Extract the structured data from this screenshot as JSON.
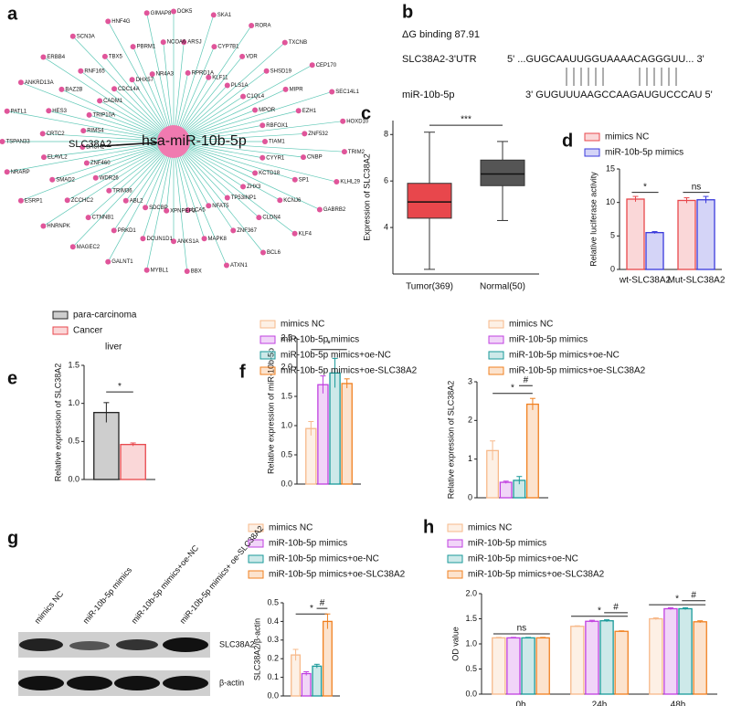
{
  "panels": [
    "a",
    "b",
    "c",
    "d",
    "e",
    "f",
    "g",
    "h"
  ],
  "network": {
    "center": "hsa-miR-10b-5p",
    "highlight": "SLC38A2",
    "nodes": [
      "DOK5",
      "ARSJ",
      "RPRD1A",
      "SKA1",
      "CYP7B1",
      "KLF11",
      "RORA",
      "VDR",
      "PLS1A",
      "TXCNB",
      "SHSD19",
      "C1QL4",
      "CEP170",
      "MIPR",
      "MPOR",
      "SEC14L1",
      "EZH1",
      "RBFOX1",
      "HOXD10",
      "ZNF532",
      "TIAM1",
      "TRIM2",
      "CNBP",
      "CYYR1",
      "KLHL29",
      "SP1",
      "KCTD18",
      "GABRB2",
      "KCNJ6",
      "ZHX3",
      "KLF4",
      "CLDN4",
      "TP53INP1",
      "BCL6",
      "ZNF367",
      "NFAT5",
      "ATXN1",
      "MAPK8",
      "LCA5",
      "BBX",
      "ANKS1A",
      "XPNPEP3",
      "MYBL1",
      "DCUN1D1",
      "SDCBP",
      "GALNT1",
      "PRKD1",
      "ABL2",
      "MAGEC2",
      "CTNNB1",
      "TRIM36",
      "HNRNPK",
      "ZCCHC2",
      "WDR26",
      "ESRP1",
      "SMAD2",
      "ZNF460",
      "NRARP",
      "ELAVL2",
      "BACH2",
      "TSPAN33",
      "CRTC2",
      "RIMS4",
      "PATL1",
      "HES3",
      "TRIP10A",
      "ANKRD13A",
      "BAZ2B",
      "CADM1",
      "ERBB4",
      "RNF165",
      "CDC14A",
      "SCN3A",
      "TBX5",
      "DHX57",
      "HNF4G",
      "PBRM1",
      "NR4A3",
      "GIMAP8",
      "NCOA6"
    ]
  },
  "sequence": {
    "title": "ΔG binding 87.91",
    "utr_name": "SLC38A2-3'UTR",
    "utr_seq": "5' ...GUGCAAUUGGUAAAACAGGGUU... 3'",
    "mir_name": "miR-10b-5p",
    "mir_seq": "3' GUGUUUAAGCCAAGAUGUCCCAU 5'"
  },
  "blot": {
    "lanes": [
      "mimics NC",
      "miR-10b-5p mimics",
      "miR-10b-5p mimics+oe-NC",
      "miR-10b-5p mimics+ oe-SLC38A2"
    ],
    "rows": [
      "SLC38A2",
      "β-actin"
    ]
  },
  "chart_data": [
    {
      "type": "box",
      "y_label": "Expression of SLC38A2",
      "categories": [
        "Tumor(369)",
        "Normal(50)"
      ],
      "colors": [
        "#e8474c",
        "#555555"
      ],
      "min": [
        2.2,
        4.3
      ],
      "q1": [
        4.4,
        5.8
      ],
      "median": [
        5.1,
        6.3
      ],
      "q3": [
        5.9,
        6.9
      ],
      "max": [
        8.1,
        7.7
      ],
      "ylim": [
        2,
        8.6
      ],
      "yticks": [
        4,
        6,
        8
      ],
      "annotations": [
        "***"
      ]
    },
    {
      "type": "bar",
      "y_label": "Relative luciferase activity",
      "categories": [
        "wt-SLC38A2",
        "Mut-SLC38A2"
      ],
      "series": [
        {
          "name": "mimics NC",
          "color": "#e8474c",
          "values": [
            10.5,
            10.3
          ],
          "errors": [
            0.4,
            0.4
          ]
        },
        {
          "name": "miR-10b-5p mimics",
          "color": "#3a3adc",
          "values": [
            5.5,
            10.4
          ],
          "errors": [
            0.15,
            0.5
          ]
        }
      ],
      "ylim": [
        0,
        15
      ],
      "yticks": [
        0,
        5,
        10,
        15
      ],
      "annotations": [
        "*",
        "ns"
      ]
    },
    {
      "type": "bar",
      "title": "liver",
      "y_label": "Relative expression of SLC38A2",
      "series": [
        {
          "name": "para-carcinoma",
          "color": "#222222",
          "values": [
            0.88
          ],
          "errors": [
            0.13
          ]
        },
        {
          "name": "Cancer",
          "color": "#e8474c",
          "values": [
            0.46
          ],
          "errors": [
            0.02
          ]
        }
      ],
      "ylim": [
        0,
        1.5
      ],
      "yticks": [
        {
          "value": 0,
          "label": "0.0"
        },
        {
          "value": 0.5,
          "label": "0.5"
        },
        {
          "value": 1,
          "label": "1.0"
        },
        {
          "value": 1.5,
          "label": "1.5"
        }
      ],
      "annotations": [
        "*"
      ]
    },
    {
      "type": "bar",
      "y_label": "Relative expression of miR-10b-5p",
      "series": [
        {
          "name": "mimics NC",
          "color": "#f7b98a",
          "values": [
            0.95
          ],
          "errors": [
            0.12
          ]
        },
        {
          "name": "miR-10b-5p mimics",
          "color": "#c040e0",
          "values": [
            1.7
          ],
          "errors": [
            0.15
          ]
        },
        {
          "name": "miR-10b-5p mimics+oe-NC",
          "color": "#1a9a9a",
          "values": [
            1.9
          ],
          "errors": [
            0.25
          ]
        },
        {
          "name": "miR-10b-5p mimics+oe-SLC38A2",
          "color": "#f08020",
          "values": [
            1.72
          ],
          "errors": [
            0.08
          ]
        }
      ],
      "ylim": [
        0,
        2.5
      ],
      "yticks": [
        {
          "value": 0,
          "label": "0.0"
        },
        {
          "value": 0.5,
          "label": "0.5"
        },
        {
          "value": 1,
          "label": "1.0"
        },
        {
          "value": 1.5,
          "label": "1.5"
        },
        {
          "value": 2,
          "label": "2.0"
        },
        {
          "value": 2.5,
          "label": "2.5"
        }
      ],
      "annotations": [
        "*"
      ]
    },
    {
      "type": "bar",
      "y_label": "Relative expression of SLC38A2",
      "series": [
        {
          "name": "mimics NC",
          "color": "#f7b98a",
          "values": [
            1.22
          ],
          "errors": [
            0.25
          ]
        },
        {
          "name": "miR-10b-5p mimics",
          "color": "#c040e0",
          "values": [
            0.4
          ],
          "errors": [
            0.03
          ]
        },
        {
          "name": "miR-10b-5p mimics+oe-NC",
          "color": "#1a9a9a",
          "values": [
            0.45
          ],
          "errors": [
            0.1
          ]
        },
        {
          "name": "miR-10b-5p mimics+oe-SLC38A2",
          "color": "#f08020",
          "values": [
            2.42
          ],
          "errors": [
            0.15
          ]
        }
      ],
      "ylim": [
        0,
        3
      ],
      "yticks": [
        0,
        1,
        2,
        3
      ],
      "annotations": [
        "*",
        "#"
      ]
    },
    {
      "type": "bar",
      "y_label": "SLC38A2/β-actin",
      "series": [
        {
          "name": "mimics NC",
          "color": "#f7b98a",
          "values": [
            0.22
          ],
          "errors": [
            0.03
          ]
        },
        {
          "name": "miR-10b-5p mimics",
          "color": "#c040e0",
          "values": [
            0.12
          ],
          "errors": [
            0.01
          ]
        },
        {
          "name": "miR-10b-5p mimics+oe-NC",
          "color": "#1a9a9a",
          "values": [
            0.16
          ],
          "errors": [
            0.01
          ]
        },
        {
          "name": "miR-10b-5p mimics+oe-SLC38A2",
          "color": "#f08020",
          "values": [
            0.4
          ],
          "errors": [
            0.04
          ]
        }
      ],
      "ylim": [
        0,
        0.5
      ],
      "yticks": [
        {
          "value": 0,
          "label": "0.0"
        },
        {
          "value": 0.1,
          "label": "0.1"
        },
        {
          "value": 0.2,
          "label": "0.2"
        },
        {
          "value": 0.3,
          "label": "0.3"
        },
        {
          "value": 0.4,
          "label": "0.4"
        },
        {
          "value": 0.5,
          "label": "0.5"
        }
      ],
      "annotations": [
        "*",
        "#"
      ]
    },
    {
      "type": "bar",
      "y_label": "OD value",
      "categories": [
        "0h",
        "24h",
        "48h"
      ],
      "series": [
        {
          "name": "mimics NC",
          "color": "#f7b98a",
          "values": [
            1.12,
            1.35,
            1.5
          ],
          "errors": [
            0.01,
            0.01,
            0.02
          ]
        },
        {
          "name": "miR-10b-5p mimics",
          "color": "#c040e0",
          "values": [
            1.12,
            1.45,
            1.7
          ],
          "errors": [
            0.01,
            0.02,
            0.02
          ]
        },
        {
          "name": "miR-10b-5p mimics+oe-NC",
          "color": "#1a9a9a",
          "values": [
            1.12,
            1.46,
            1.7
          ],
          "errors": [
            0.01,
            0.02,
            0.02
          ]
        },
        {
          "name": "miR-10b-5p mimics+oe-SLC38A2",
          "color": "#f08020",
          "values": [
            1.12,
            1.25,
            1.44
          ],
          "errors": [
            0.01,
            0.01,
            0.02
          ]
        }
      ],
      "ylim": [
        0,
        2
      ],
      "yticks": [
        {
          "value": 0,
          "label": "0.0"
        },
        {
          "value": 0.5,
          "label": "0.5"
        },
        {
          "value": 1,
          "label": "1.0"
        },
        {
          "value": 1.5,
          "label": "1.5"
        },
        {
          "value": 2,
          "label": "2.0"
        }
      ],
      "annotations": [
        "ns",
        "*",
        "#",
        "*",
        "#"
      ]
    }
  ]
}
